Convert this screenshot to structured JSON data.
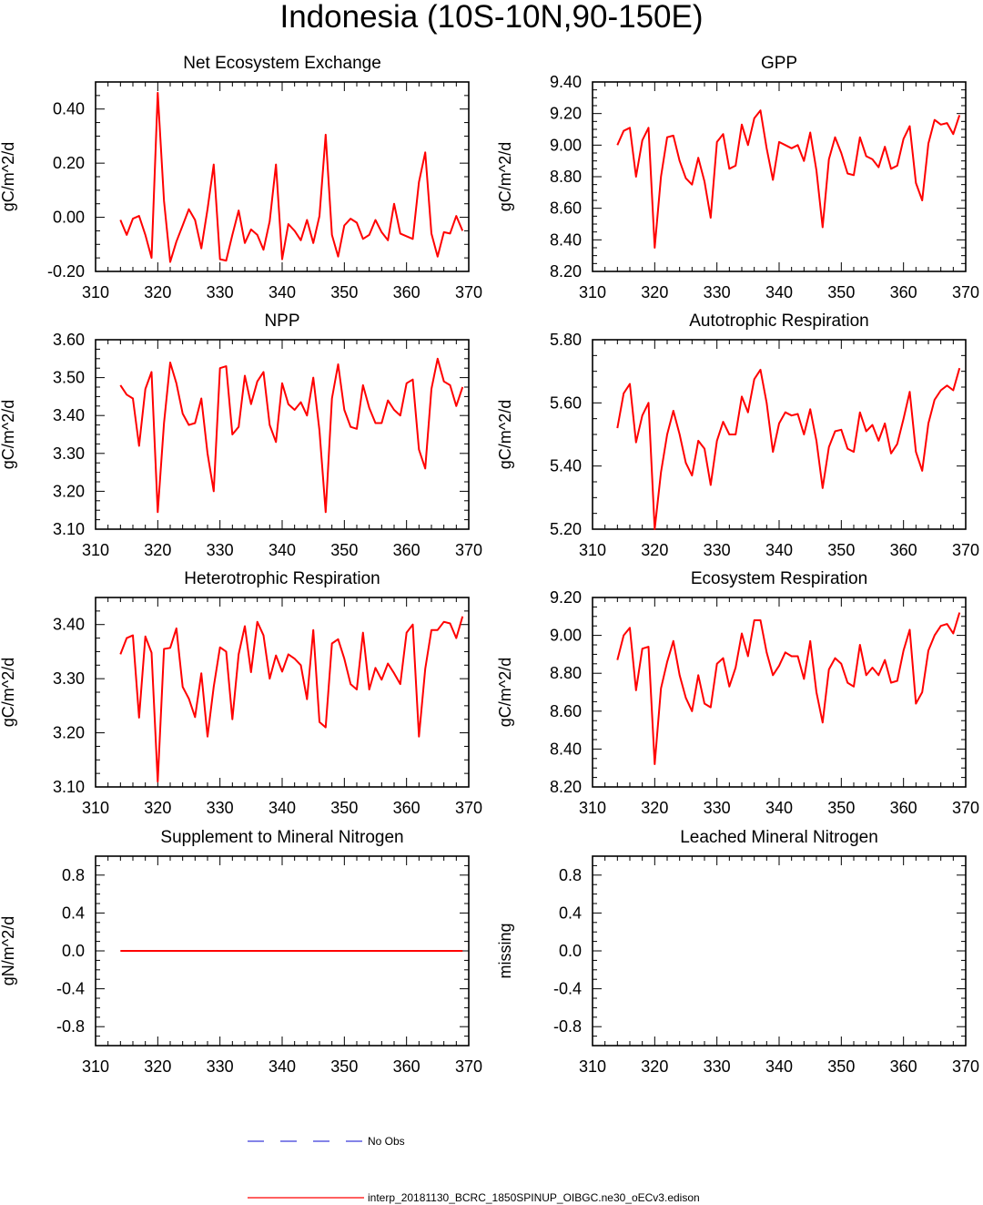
{
  "title": "Indonesia (10S-10N,90-150E)",
  "colors": {
    "model_line": "#ff0000",
    "obs_line": "#3b3bd9",
    "axis": "#000000"
  },
  "legend": {
    "items": [
      {
        "label": "No Obs",
        "style": "dashed",
        "color": "#3b3bd9"
      },
      {
        "label": "interp_20181130_BCRC_1850SPINUP_OIBGC.ne30_oECv3.edison",
        "style": "solid",
        "color": "#ff0000"
      }
    ]
  },
  "chart_data": [
    {
      "type": "line",
      "title": "Net Ecosystem Exchange",
      "ylabel": "gC/m^2/d",
      "xlim": [
        310,
        370
      ],
      "ylim": [
        -0.2,
        0.5
      ],
      "xticks": [
        310,
        320,
        330,
        340,
        350,
        360,
        370
      ],
      "yticks": [
        -0.2,
        0,
        0.2,
        0.4
      ],
      "ytick_labels": [
        "-0.20",
        "0.00",
        "0.20",
        "0.40"
      ],
      "x": [
        314,
        315,
        316,
        317,
        318,
        319,
        320,
        321,
        322,
        323,
        324,
        325,
        326,
        327,
        328,
        329,
        330,
        331,
        332,
        333,
        334,
        335,
        336,
        337,
        338,
        339,
        340,
        341,
        342,
        343,
        344,
        345,
        346,
        347,
        348,
        349,
        350,
        351,
        352,
        353,
        354,
        355,
        356,
        357,
        358,
        359,
        360,
        361,
        362,
        363,
        364,
        365,
        366,
        367,
        368,
        369
      ],
      "series": [
        {
          "values": [
            -0.01,
            -0.065,
            -0.005,
            0.005,
            -0.065,
            -0.15,
            0.46,
            0.06,
            -0.165,
            -0.09,
            -0.03,
            0.03,
            -0.01,
            -0.115,
            0.03,
            0.195,
            -0.155,
            -0.16,
            -0.065,
            0.025,
            -0.095,
            -0.045,
            -0.065,
            -0.12,
            -0.015,
            0.195,
            -0.155,
            -0.025,
            -0.05,
            -0.085,
            -0.01,
            -0.095,
            0.005,
            0.305,
            -0.065,
            -0.145,
            -0.03,
            -0.005,
            -0.02,
            -0.08,
            -0.065,
            -0.01,
            -0.055,
            -0.085,
            0.05,
            -0.06,
            -0.07,
            -0.08,
            0.13,
            0.24,
            -0.06,
            -0.145,
            -0.055,
            -0.06,
            0.005,
            -0.05
          ]
        }
      ]
    },
    {
      "type": "line",
      "title": "GPP",
      "ylabel": "gC/m^2/d",
      "xlim": [
        310,
        370
      ],
      "ylim": [
        8.2,
        9.4
      ],
      "xticks": [
        310,
        320,
        330,
        340,
        350,
        360,
        370
      ],
      "yticks": [
        8.2,
        8.4,
        8.6,
        8.8,
        9.0,
        9.2,
        9.4
      ],
      "ytick_labels": [
        "8.20",
        "8.40",
        "8.60",
        "8.80",
        "9.00",
        "9.20",
        "9.40"
      ],
      "x": [
        314,
        315,
        316,
        317,
        318,
        319,
        320,
        321,
        322,
        323,
        324,
        325,
        326,
        327,
        328,
        329,
        330,
        331,
        332,
        333,
        334,
        335,
        336,
        337,
        338,
        339,
        340,
        341,
        342,
        343,
        344,
        345,
        346,
        347,
        348,
        349,
        350,
        351,
        352,
        353,
        354,
        355,
        356,
        357,
        358,
        359,
        360,
        361,
        362,
        363,
        364,
        365,
        366,
        367,
        368,
        369
      ],
      "series": [
        {
          "values": [
            9.0,
            9.09,
            9.11,
            8.8,
            9.03,
            9.11,
            8.35,
            8.8,
            9.05,
            9.06,
            8.9,
            8.79,
            8.75,
            8.92,
            8.77,
            8.54,
            9.02,
            9.07,
            8.85,
            8.87,
            9.13,
            9.0,
            9.17,
            9.22,
            8.98,
            8.78,
            9.02,
            9.0,
            8.98,
            9.0,
            8.9,
            9.08,
            8.84,
            8.48,
            8.91,
            9.05,
            8.95,
            8.82,
            8.81,
            9.05,
            8.93,
            8.91,
            8.86,
            8.99,
            8.85,
            8.87,
            9.04,
            9.12,
            8.76,
            8.65,
            9.01,
            9.16,
            9.13,
            9.14,
            9.07,
            9.19
          ]
        }
      ]
    },
    {
      "type": "line",
      "title": "NPP",
      "ylabel": "gC/m^2/d",
      "xlim": [
        310,
        370
      ],
      "ylim": [
        3.1,
        3.6
      ],
      "xticks": [
        310,
        320,
        330,
        340,
        350,
        360,
        370
      ],
      "yticks": [
        3.1,
        3.2,
        3.3,
        3.4,
        3.5,
        3.6
      ],
      "ytick_labels": [
        "3.10",
        "3.20",
        "3.30",
        "3.40",
        "3.50",
        "3.60"
      ],
      "x": [
        314,
        315,
        316,
        317,
        318,
        319,
        320,
        321,
        322,
        323,
        324,
        325,
        326,
        327,
        328,
        329,
        330,
        331,
        332,
        333,
        334,
        335,
        336,
        337,
        338,
        339,
        340,
        341,
        342,
        343,
        344,
        345,
        346,
        347,
        348,
        349,
        350,
        351,
        352,
        353,
        354,
        355,
        356,
        357,
        358,
        359,
        360,
        361,
        362,
        363,
        364,
        365,
        366,
        367,
        368,
        369
      ],
      "series": [
        {
          "values": [
            3.48,
            3.455,
            3.445,
            3.32,
            3.47,
            3.515,
            3.145,
            3.38,
            3.54,
            3.485,
            3.405,
            3.375,
            3.38,
            3.445,
            3.3,
            3.2,
            3.525,
            3.53,
            3.35,
            3.37,
            3.505,
            3.43,
            3.49,
            3.515,
            3.375,
            3.33,
            3.485,
            3.43,
            3.415,
            3.435,
            3.4,
            3.5,
            3.36,
            3.145,
            3.445,
            3.535,
            3.415,
            3.37,
            3.365,
            3.48,
            3.42,
            3.38,
            3.38,
            3.44,
            3.415,
            3.4,
            3.485,
            3.495,
            3.31,
            3.26,
            3.47,
            3.55,
            3.49,
            3.48,
            3.425,
            3.475
          ]
        }
      ]
    },
    {
      "type": "line",
      "title": "Autotrophic Respiration",
      "ylabel": "gC/m^2/d",
      "xlim": [
        310,
        370
      ],
      "ylim": [
        5.2,
        5.8
      ],
      "xticks": [
        310,
        320,
        330,
        340,
        350,
        360,
        370
      ],
      "yticks": [
        5.2,
        5.4,
        5.6,
        5.8
      ],
      "ytick_labels": [
        "5.20",
        "5.40",
        "5.60",
        "5.80"
      ],
      "x": [
        314,
        315,
        316,
        317,
        318,
        319,
        320,
        321,
        322,
        323,
        324,
        325,
        326,
        327,
        328,
        329,
        330,
        331,
        332,
        333,
        334,
        335,
        336,
        337,
        338,
        339,
        340,
        341,
        342,
        343,
        344,
        345,
        346,
        347,
        348,
        349,
        350,
        351,
        352,
        353,
        354,
        355,
        356,
        357,
        358,
        359,
        360,
        361,
        362,
        363,
        364,
        365,
        366,
        367,
        368,
        369
      ],
      "series": [
        {
          "values": [
            5.52,
            5.63,
            5.66,
            5.475,
            5.56,
            5.6,
            5.2,
            5.38,
            5.5,
            5.575,
            5.5,
            5.41,
            5.37,
            5.48,
            5.455,
            5.34,
            5.48,
            5.54,
            5.5,
            5.5,
            5.62,
            5.57,
            5.675,
            5.705,
            5.6,
            5.445,
            5.535,
            5.57,
            5.56,
            5.565,
            5.5,
            5.58,
            5.48,
            5.33,
            5.46,
            5.51,
            5.515,
            5.455,
            5.445,
            5.57,
            5.51,
            5.53,
            5.48,
            5.535,
            5.44,
            5.47,
            5.55,
            5.635,
            5.445,
            5.385,
            5.535,
            5.61,
            5.64,
            5.655,
            5.64,
            5.71
          ]
        }
      ]
    },
    {
      "type": "line",
      "title": "Heterotrophic Respiration",
      "ylabel": "gC/m^2/d",
      "xlim": [
        310,
        370
      ],
      "ylim": [
        3.1,
        3.45
      ],
      "xticks": [
        310,
        320,
        330,
        340,
        350,
        360,
        370
      ],
      "yticks": [
        3.1,
        3.2,
        3.3,
        3.4
      ],
      "ytick_labels": [
        "3.10",
        "3.20",
        "3.30",
        "3.40"
      ],
      "x": [
        314,
        315,
        316,
        317,
        318,
        319,
        320,
        321,
        322,
        323,
        324,
        325,
        326,
        327,
        328,
        329,
        330,
        331,
        332,
        333,
        334,
        335,
        336,
        337,
        338,
        339,
        340,
        341,
        342,
        343,
        344,
        345,
        346,
        347,
        348,
        349,
        350,
        351,
        352,
        353,
        354,
        355,
        356,
        357,
        358,
        359,
        360,
        361,
        362,
        363,
        364,
        365,
        366,
        367,
        368,
        369
      ],
      "series": [
        {
          "values": [
            3.345,
            3.375,
            3.38,
            3.228,
            3.378,
            3.348,
            3.11,
            3.355,
            3.357,
            3.393,
            3.285,
            3.263,
            3.229,
            3.31,
            3.193,
            3.285,
            3.358,
            3.35,
            3.225,
            3.345,
            3.397,
            3.312,
            3.405,
            3.38,
            3.3,
            3.343,
            3.313,
            3.345,
            3.337,
            3.325,
            3.262,
            3.39,
            3.22,
            3.21,
            3.365,
            3.373,
            3.337,
            3.29,
            3.28,
            3.385,
            3.28,
            3.32,
            3.298,
            3.328,
            3.31,
            3.29,
            3.385,
            3.4,
            3.193,
            3.318,
            3.39,
            3.39,
            3.405,
            3.402,
            3.375,
            3.415
          ]
        }
      ]
    },
    {
      "type": "line",
      "title": "Ecosystem Respiration",
      "ylabel": "gC/m^2/d",
      "xlim": [
        310,
        370
      ],
      "ylim": [
        8.2,
        9.2
      ],
      "xticks": [
        310,
        320,
        330,
        340,
        350,
        360,
        370
      ],
      "yticks": [
        8.2,
        8.4,
        8.6,
        8.8,
        9.0,
        9.2
      ],
      "ytick_labels": [
        "8.20",
        "8.40",
        "8.60",
        "8.80",
        "9.00",
        "9.20"
      ],
      "x": [
        314,
        315,
        316,
        317,
        318,
        319,
        320,
        321,
        322,
        323,
        324,
        325,
        326,
        327,
        328,
        329,
        330,
        331,
        332,
        333,
        334,
        335,
        336,
        337,
        338,
        339,
        340,
        341,
        342,
        343,
        344,
        345,
        346,
        347,
        348,
        349,
        350,
        351,
        352,
        353,
        354,
        355,
        356,
        357,
        358,
        359,
        360,
        361,
        362,
        363,
        364,
        365,
        366,
        367,
        368,
        369
      ],
      "series": [
        {
          "values": [
            8.87,
            9.0,
            9.04,
            8.71,
            8.93,
            8.94,
            8.32,
            8.72,
            8.86,
            8.97,
            8.79,
            8.67,
            8.6,
            8.79,
            8.64,
            8.62,
            8.85,
            8.88,
            8.73,
            8.83,
            9.01,
            8.89,
            9.08,
            9.08,
            8.91,
            8.79,
            8.84,
            8.91,
            8.89,
            8.89,
            8.77,
            8.97,
            8.7,
            8.54,
            8.82,
            8.88,
            8.85,
            8.75,
            8.73,
            8.95,
            8.79,
            8.83,
            8.79,
            8.87,
            8.75,
            8.76,
            8.92,
            9.03,
            8.64,
            8.7,
            8.92,
            9.0,
            9.05,
            9.06,
            9.01,
            9.12
          ]
        }
      ]
    },
    {
      "type": "line",
      "title": "Supplement to Mineral Nitrogen",
      "ylabel": "gN/m^2/d",
      "xlim": [
        310,
        370
      ],
      "ylim": [
        -1,
        1
      ],
      "xticks": [
        310,
        320,
        330,
        340,
        350,
        360,
        370
      ],
      "yticks": [
        -0.8,
        -0.4,
        0,
        0.4,
        0.8
      ],
      "ytick_labels": [
        "-0.8",
        "-0.4",
        "0.0",
        "0.4",
        "0.8"
      ],
      "x": [
        314,
        369
      ],
      "series": [
        {
          "values": [
            0,
            0
          ]
        }
      ]
    },
    {
      "type": "line",
      "title": "Leached Mineral Nitrogen",
      "ylabel": "missing",
      "xlim": [
        310,
        370
      ],
      "ylim": [
        -1,
        1
      ],
      "xticks": [
        310,
        320,
        330,
        340,
        350,
        360,
        370
      ],
      "yticks": [
        -0.8,
        -0.4,
        0,
        0.4,
        0.8
      ],
      "ytick_labels": [
        "-0.8",
        "-0.4",
        "0.0",
        "0.4",
        "0.8"
      ],
      "x": [],
      "series": []
    }
  ]
}
